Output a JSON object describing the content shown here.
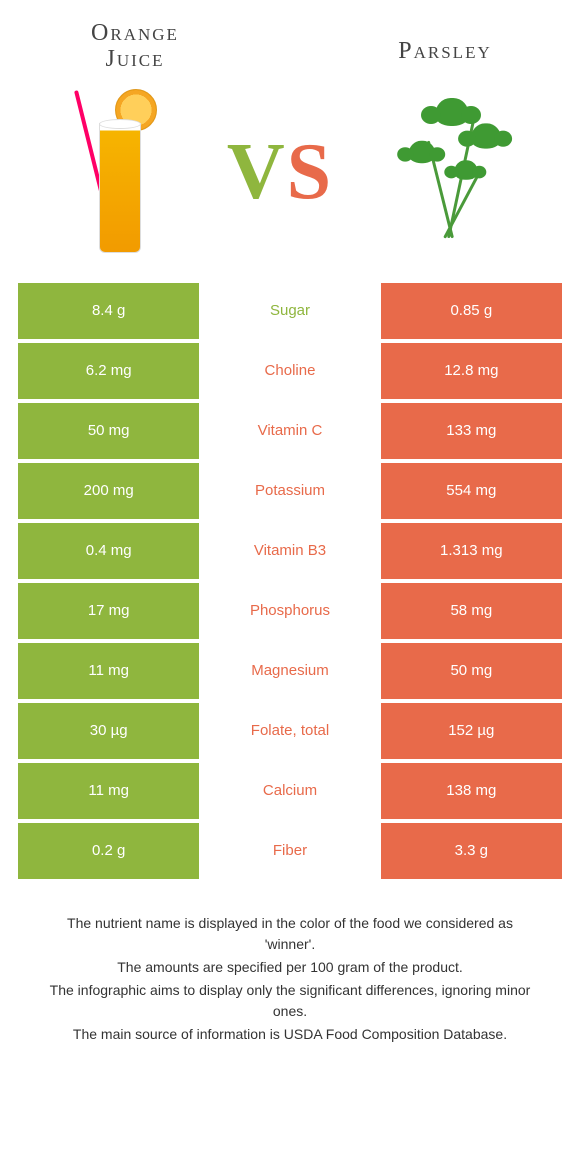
{
  "colors": {
    "left_bg": "#8fb63e",
    "right_bg": "#e86a4a",
    "mid_bg": "#ffffff",
    "row_gap_color": "#ffffff",
    "text_on_color": "#ffffff"
  },
  "header": {
    "left_title_line1": "Orange",
    "left_title_line2": "Juice",
    "right_title": "Parsley",
    "vs_v": "V",
    "vs_s": "S"
  },
  "table": {
    "rows": [
      {
        "left": "8.4 g",
        "label": "Sugar",
        "right": "0.85 g",
        "winner": "left"
      },
      {
        "left": "6.2 mg",
        "label": "Choline",
        "right": "12.8 mg",
        "winner": "right"
      },
      {
        "left": "50 mg",
        "label": "Vitamin C",
        "right": "133 mg",
        "winner": "right"
      },
      {
        "left": "200 mg",
        "label": "Potassium",
        "right": "554 mg",
        "winner": "right"
      },
      {
        "left": "0.4 mg",
        "label": "Vitamin B3",
        "right": "1.313 mg",
        "winner": "right"
      },
      {
        "left": "17 mg",
        "label": "Phosphorus",
        "right": "58 mg",
        "winner": "right"
      },
      {
        "left": "11 mg",
        "label": "Magnesium",
        "right": "50 mg",
        "winner": "right"
      },
      {
        "left": "30 µg",
        "label": "Folate, total",
        "right": "152 µg",
        "winner": "right"
      },
      {
        "left": "11 mg",
        "label": "Calcium",
        "right": "138 mg",
        "winner": "right"
      },
      {
        "left": "0.2 g",
        "label": "Fiber",
        "right": "3.3 g",
        "winner": "right"
      }
    ]
  },
  "footer": {
    "line1": "The nutrient name is displayed in the color of the food we considered as 'winner'.",
    "line2": "The amounts are specified per 100 gram of the product.",
    "line3": "The infographic aims to display only the significant differences, ignoring minor ones.",
    "line4": "The main source of information is USDA Food Composition Database."
  }
}
